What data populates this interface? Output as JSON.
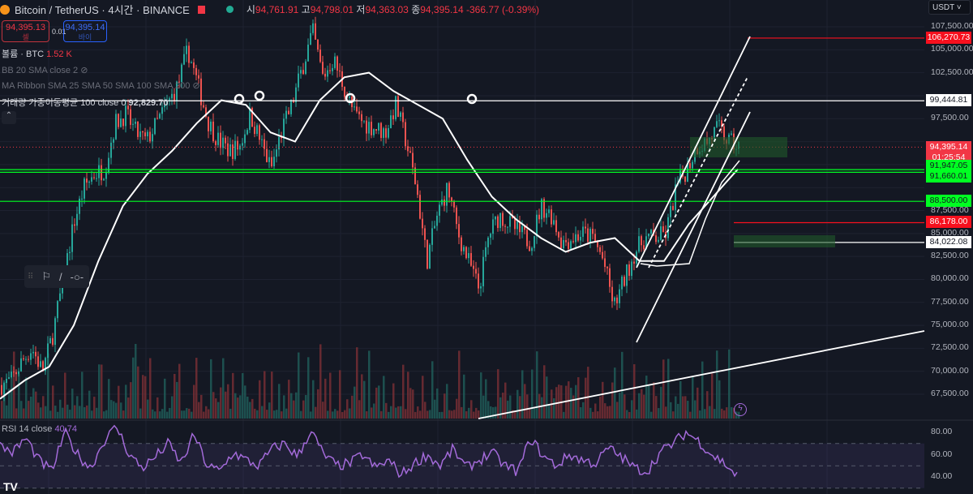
{
  "header": {
    "symbol": "Bitcoin / TetherUS · 4시간 · BINANCE",
    "open_label": "시",
    "open": "94,761.91",
    "high_label": "고",
    "high": "94,798.01",
    "low_label": "저",
    "low": "94,363.03",
    "close_label": "종",
    "close": "94,395.14",
    "change": "-366.77 (-0.39%)"
  },
  "trade": {
    "sell_price": "94,395.13",
    "sell_label": "셀",
    "spread": "0.01",
    "buy_price": "94,395.14",
    "buy_label": "바이"
  },
  "legend": {
    "volume_label": "볼륨 · BTC",
    "volume_value": "1.52 K",
    "bb": "BB 20 SMA close 2",
    "ma_ribbon": "MA Ribbon SMA 25 SMA 50 SMA 100 SMA 200",
    "vwma": "거래량 가중이동평균 100 close 0",
    "vwma_value": "92,829.70",
    "rsi": "RSI 14 close",
    "rsi_value": "40.74"
  },
  "currency": "USDT",
  "price_axis": [
    "107,500.00",
    "105,000.00",
    "102,500.00",
    "97,500.00",
    "87,500.00",
    "85,000.00",
    "82,500.00",
    "80,000.00",
    "77,500.00",
    "75,000.00",
    "72,500.00",
    "70,000.00",
    "67,500.00"
  ],
  "rsi_axis": [
    "80.00",
    "60.00",
    "40.00"
  ],
  "tags": [
    {
      "price": "106,270.73",
      "bg": "#f7101e",
      "fg": "#ffffff"
    },
    {
      "price": "99,444.81",
      "bg": "#ffffff",
      "fg": "#131722"
    },
    {
      "price": "94,395.14",
      "extra": "01:25:54",
      "bg": "#f23645",
      "fg": "#ffffff"
    },
    {
      "price": "91,947.05",
      "bg": "#00ff22",
      "fg": "#131722"
    },
    {
      "price": "91,660.01",
      "bg": "#00ff22",
      "fg": "#131722"
    },
    {
      "price": "88,500.00",
      "bg": "#00ff22",
      "fg": "#131722"
    },
    {
      "price": "86,178.00",
      "bg": "#f7101e",
      "fg": "#ffffff"
    },
    {
      "price": "84,022.08",
      "bg": "#ffffff",
      "fg": "#131722"
    }
  ],
  "chart_data": {
    "type": "candlestick",
    "interval": "4h",
    "y_range": [
      67500,
      107500
    ],
    "close_path": [
      68500,
      69000,
      71000,
      72500,
      70000,
      74000,
      80000,
      86000,
      90000,
      91500,
      92000,
      97000,
      98000,
      96000,
      95000,
      97000,
      99000,
      101000,
      105000,
      101000,
      97000,
      95000,
      94000,
      94500,
      98000,
      95000,
      92000,
      96000,
      99000,
      103000,
      107000,
      102000,
      104000,
      101000,
      98000,
      97000,
      96500,
      96000,
      99000,
      95000,
      90000,
      82000,
      87000,
      90000,
      85000,
      82000,
      79000,
      85000,
      87000,
      86000,
      85000,
      84000,
      88000,
      87000,
      84000,
      84500,
      85000,
      84500,
      82000,
      77000,
      80000,
      83000,
      84500,
      84500,
      85000,
      90000,
      92000,
      94500,
      95000,
      96500,
      95000,
      94395
    ],
    "vwma_path": [
      67000,
      69000,
      70500,
      75000,
      82000,
      88000,
      91500,
      94000,
      97000,
      99500,
      99000,
      96000,
      95000,
      99500,
      102000,
      102500,
      100500,
      99000,
      97500,
      93000,
      89000,
      86500,
      84500,
      83000,
      84000,
      84500,
      82000,
      82000,
      86000,
      89000,
      92000
    ],
    "horizontal_levels": [
      106270.73,
      99444.81,
      91947.05,
      91660.01,
      88500,
      86178,
      84022.08
    ],
    "rsi_range": [
      30,
      90
    ],
    "rsi_bands": [
      70,
      50,
      30
    ],
    "rsi_path": [
      68,
      62,
      75,
      55,
      45,
      80,
      60,
      48,
      72,
      85,
      60,
      48,
      58,
      70,
      52,
      78,
      50,
      45,
      62,
      55,
      50,
      65,
      70,
      58,
      82,
      60,
      50,
      52,
      60,
      48,
      55,
      42,
      52,
      60,
      50,
      65,
      48,
      55,
      62,
      50,
      45,
      75,
      58,
      50,
      60,
      55,
      52,
      66,
      58,
      48,
      45,
      62,
      70,
      80,
      72,
      60,
      52,
      40
    ]
  }
}
